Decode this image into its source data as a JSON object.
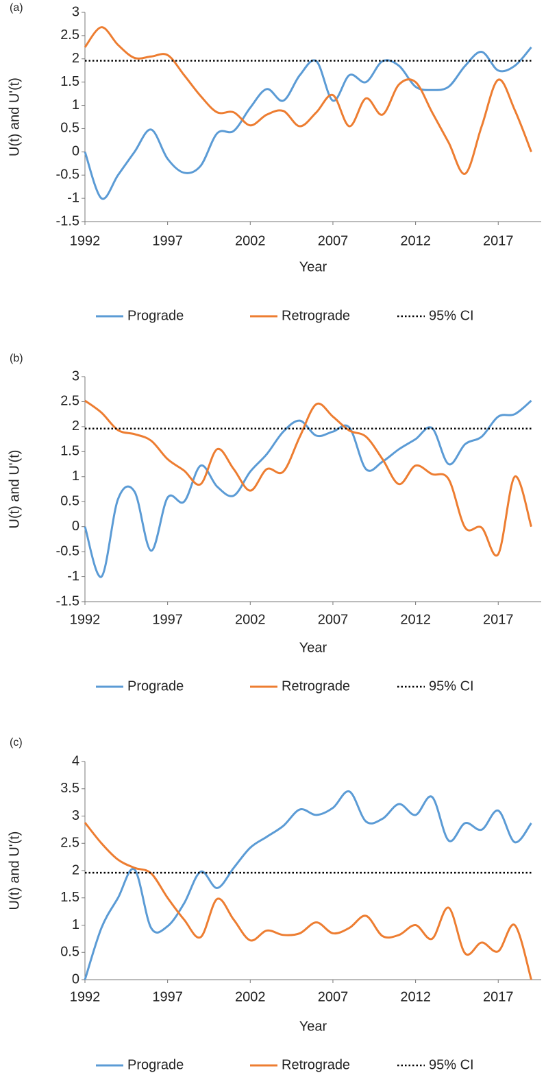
{
  "chart_data": [
    {
      "type": "line",
      "label": "(a)",
      "y_label": "U(t) and U'(t)",
      "x_label": "Year",
      "x": [
        1992,
        1993,
        1994,
        1995,
        1996,
        1997,
        1998,
        1999,
        2000,
        2001,
        2002,
        2003,
        2004,
        2005,
        2006,
        2007,
        2008,
        2009,
        2010,
        2011,
        2012,
        2013,
        2014,
        2015,
        2016,
        2017,
        2018,
        2019
      ],
      "xlim": [
        1992,
        2019.6
      ],
      "xticks": [
        1992,
        1997,
        2002,
        2007,
        2012,
        2017
      ],
      "ylim": [
        -1.5,
        3
      ],
      "yticks": [
        -1.5,
        -1,
        -0.5,
        0,
        0.5,
        1,
        1.5,
        2,
        2.5,
        3
      ],
      "series": [
        {
          "name": "Prograde",
          "color": "#5b9bd5",
          "line_style": "solid",
          "values": [
            0,
            -1,
            -0.5,
            0,
            0.48,
            -0.15,
            -0.45,
            -0.3,
            0.4,
            0.45,
            0.95,
            1.35,
            1.1,
            1.65,
            1.95,
            1.1,
            1.65,
            1.5,
            1.95,
            1.85,
            1.4,
            1.33,
            1.4,
            1.85,
            2.15,
            1.75,
            1.85,
            2.25
          ]
        },
        {
          "name": "Retrograde",
          "color": "#ed7d31",
          "line_style": "solid",
          "values": [
            2.25,
            2.68,
            2.3,
            2.02,
            2.05,
            2.08,
            1.65,
            1.2,
            0.85,
            0.85,
            0.57,
            0.8,
            0.88,
            0.55,
            0.85,
            1.22,
            0.55,
            1.15,
            0.8,
            1.45,
            1.5,
            0.85,
            0.2,
            -0.47,
            0.55,
            1.55,
            0.9,
            0
          ]
        },
        {
          "name": "95% CI",
          "color": "#000000",
          "line_style": "dotted",
          "values": [
            1.96,
            1.96,
            1.96,
            1.96,
            1.96,
            1.96,
            1.96,
            1.96,
            1.96,
            1.96,
            1.96,
            1.96,
            1.96,
            1.96,
            1.96,
            1.96,
            1.96,
            1.96,
            1.96,
            1.96,
            1.96,
            1.96,
            1.96,
            1.96,
            1.96,
            1.96,
            1.96,
            1.96
          ]
        }
      ]
    },
    {
      "type": "line",
      "label": "(b)",
      "y_label": "U(t) and U'(t)",
      "x_label": "Year",
      "x": [
        1992,
        1993,
        1994,
        1995,
        1996,
        1997,
        1998,
        1999,
        2000,
        2001,
        2002,
        2003,
        2004,
        2005,
        2006,
        2007,
        2008,
        2009,
        2010,
        2011,
        2012,
        2013,
        2014,
        2015,
        2016,
        2017,
        2018,
        2019
      ],
      "xlim": [
        1992,
        2019.6
      ],
      "xticks": [
        1992,
        1997,
        2002,
        2007,
        2012,
        2017
      ],
      "ylim": [
        -1.5,
        3
      ],
      "yticks": [
        -1.5,
        -1,
        -0.5,
        0,
        0.5,
        1,
        1.5,
        2,
        2.5,
        3
      ],
      "series": [
        {
          "name": "Prograde",
          "color": "#5b9bd5",
          "line_style": "solid",
          "values": [
            0,
            -1,
            0.55,
            0.7,
            -0.48,
            0.58,
            0.5,
            1.22,
            0.8,
            0.62,
            1.1,
            1.45,
            1.9,
            2.12,
            1.82,
            1.9,
            1.98,
            1.15,
            1.3,
            1.55,
            1.75,
            1.97,
            1.25,
            1.65,
            1.8,
            2.2,
            2.25,
            2.52
          ]
        },
        {
          "name": "Retrograde",
          "color": "#ed7d31",
          "line_style": "solid",
          "values": [
            2.52,
            2.28,
            1.93,
            1.85,
            1.72,
            1.35,
            1.12,
            0.85,
            1.55,
            1.15,
            0.72,
            1.15,
            1.1,
            1.8,
            2.45,
            2.2,
            1.92,
            1.8,
            1.35,
            0.85,
            1.22,
            1.05,
            0.95,
            -0.02,
            -0.02,
            -0.55,
            1.0,
            0
          ]
        },
        {
          "name": "95% CI",
          "color": "#000000",
          "line_style": "dotted",
          "values": [
            1.96,
            1.96,
            1.96,
            1.96,
            1.96,
            1.96,
            1.96,
            1.96,
            1.96,
            1.96,
            1.96,
            1.96,
            1.96,
            1.96,
            1.96,
            1.96,
            1.96,
            1.96,
            1.96,
            1.96,
            1.96,
            1.96,
            1.96,
            1.96,
            1.96,
            1.96,
            1.96,
            1.96
          ]
        }
      ]
    },
    {
      "type": "line",
      "label": "(c)",
      "y_label": "U(t) and U'(t)",
      "x_label": "Year",
      "x": [
        1992,
        1993,
        1994,
        1995,
        1996,
        1997,
        1998,
        1999,
        2000,
        2001,
        2002,
        2003,
        2004,
        2005,
        2006,
        2007,
        2008,
        2009,
        2010,
        2011,
        2012,
        2013,
        2014,
        2015,
        2016,
        2017,
        2018,
        2019
      ],
      "xlim": [
        1992,
        2019.6
      ],
      "xticks": [
        1992,
        1997,
        2002,
        2007,
        2012,
        2017
      ],
      "ylim": [
        0,
        4
      ],
      "yticks": [
        0,
        0.5,
        1,
        1.5,
        2,
        2.5,
        3,
        3.5,
        4
      ],
      "series": [
        {
          "name": "Prograde",
          "color": "#5b9bd5",
          "line_style": "solid",
          "values": [
            0,
            0.95,
            1.5,
            2.02,
            0.95,
            0.98,
            1.4,
            1.98,
            1.68,
            2.05,
            2.42,
            2.62,
            2.82,
            3.12,
            3.02,
            3.15,
            3.45,
            2.9,
            2.95,
            3.22,
            3.02,
            3.35,
            2.55,
            2.87,
            2.75,
            3.1,
            2.52,
            2.87
          ]
        },
        {
          "name": "Retrograde",
          "color": "#ed7d31",
          "line_style": "solid",
          "values": [
            2.88,
            2.5,
            2.2,
            2.05,
            1.95,
            1.5,
            1.1,
            0.78,
            1.48,
            1.1,
            0.72,
            0.9,
            0.82,
            0.85,
            1.05,
            0.85,
            0.95,
            1.17,
            0.8,
            0.82,
            1.0,
            0.75,
            1.32,
            0.48,
            0.68,
            0.52,
            1.0,
            0
          ]
        },
        {
          "name": "95% CI",
          "color": "#000000",
          "line_style": "dotted",
          "values": [
            1.96,
            1.96,
            1.96,
            1.96,
            1.96,
            1.96,
            1.96,
            1.96,
            1.96,
            1.96,
            1.96,
            1.96,
            1.96,
            1.96,
            1.96,
            1.96,
            1.96,
            1.96,
            1.96,
            1.96,
            1.96,
            1.96,
            1.96,
            1.96,
            1.96,
            1.96,
            1.96,
            1.96
          ]
        }
      ]
    }
  ]
}
